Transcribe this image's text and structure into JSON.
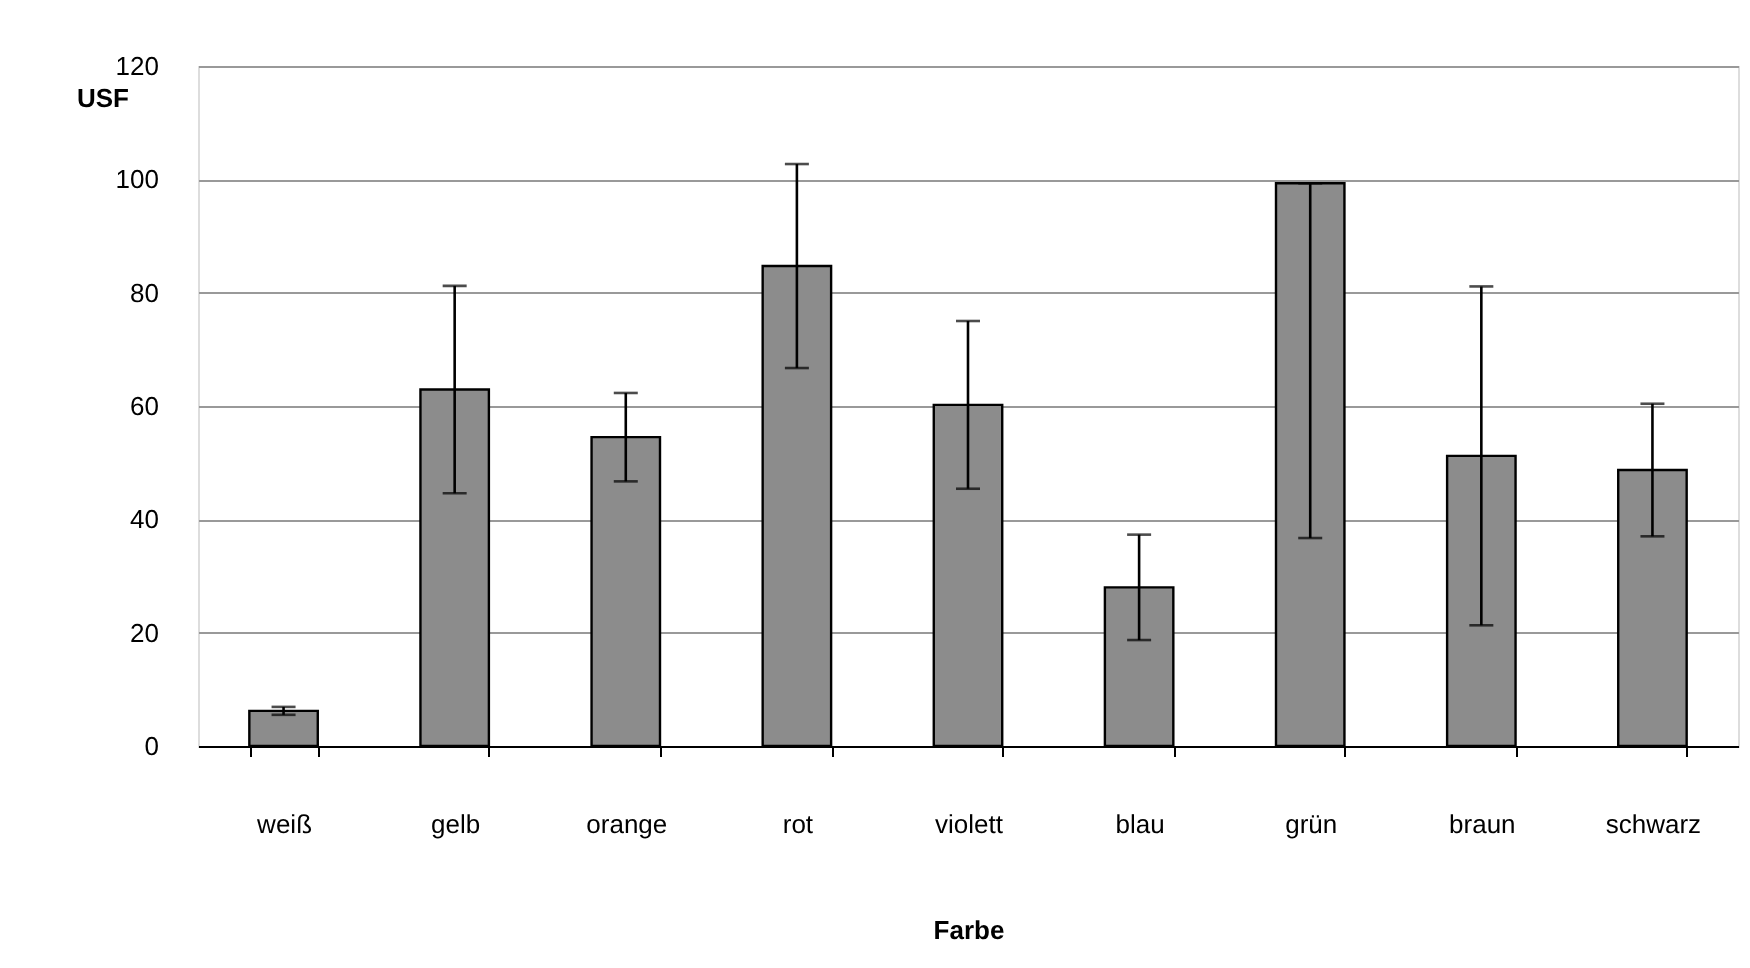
{
  "chart_data": {
    "type": "bar",
    "xlabel": "Farbe",
    "ylabel": "USF",
    "categories": [
      "weiß",
      "gelb",
      "orange",
      "rot",
      "violett",
      "blau",
      "grün",
      "braun",
      "schwarz"
    ],
    "values": [
      6.2,
      62.9,
      54.5,
      84.7,
      60.2,
      28.0,
      99.3,
      51.2,
      48.7
    ],
    "errors": [
      0.7,
      18.3,
      7.8,
      18.0,
      14.8,
      9.3,
      [
        36.7,
        99.3
      ],
      29.9,
      11.7
    ],
    "color": "#8c8c8c",
    "ylim": [
      0,
      120
    ],
    "yticks": [
      0,
      20,
      40,
      60,
      80,
      100,
      120
    ],
    "grid": "y"
  }
}
